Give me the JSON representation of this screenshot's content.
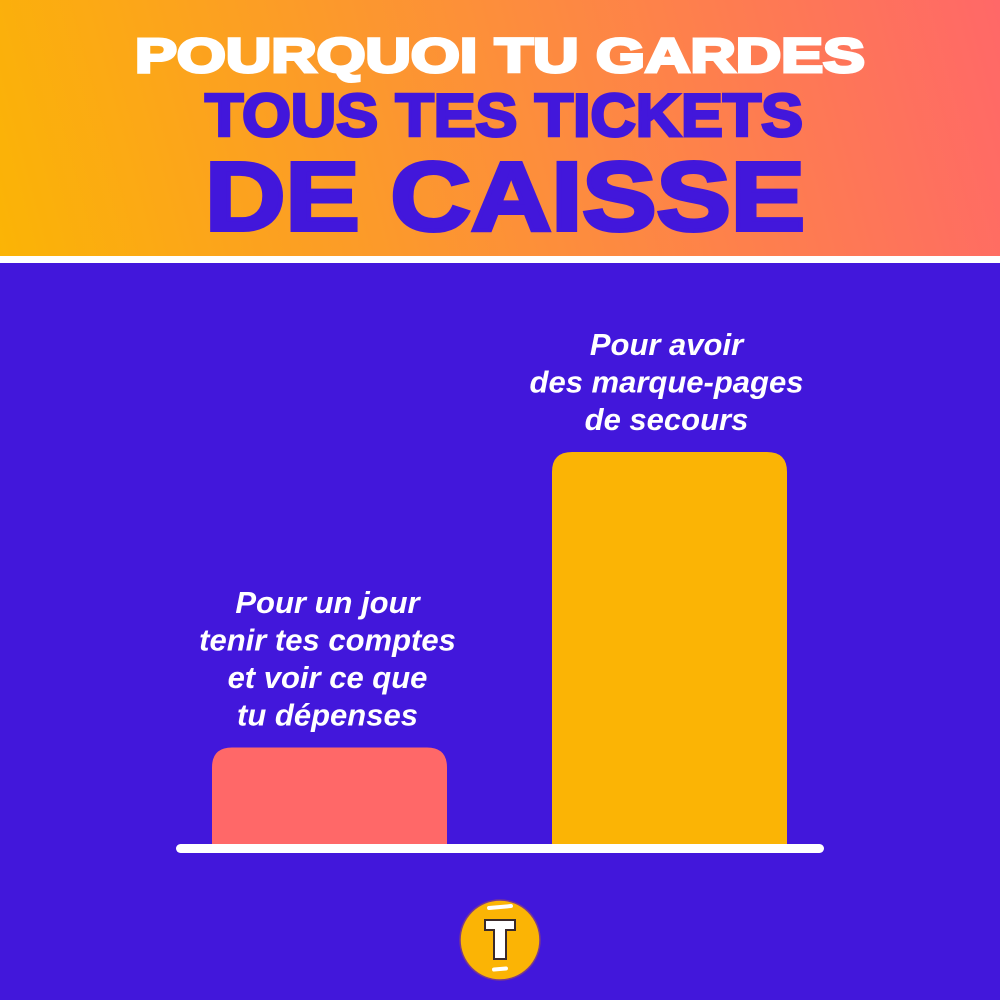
{
  "title": {
    "line1": "POURQUOI TU GARDES",
    "line2": "TOUS TES TICKETS",
    "line3": "DE CAISSE"
  },
  "colors": {
    "background": "#4217db",
    "header_gradient": [
      "#fbb405",
      "#ff6868"
    ],
    "title_white": "#ffffff",
    "title_purple": "#4217db",
    "baseline": "#ffffff",
    "logo": "#fbb405"
  },
  "chart_data": {
    "type": "bar",
    "title": "POURQUOI TU GARDES TOUS TES TICKETS DE CAISSE",
    "categories": [
      [
        "Pour un jour",
        "tenir tes comptes",
        "et voir ce que",
        "tu dépenses"
      ],
      [
        "Pour avoir",
        "des marque-pages",
        "de secours"
      ]
    ],
    "values": [
      25,
      100
    ],
    "bar_colors": [
      "#ff6868",
      "#fbb405"
    ],
    "ylim": [
      0,
      100
    ],
    "xlabel": "",
    "ylabel": "",
    "grid": false,
    "axes_ticks": false,
    "labels_position": "above bars"
  },
  "logo": {
    "icon": "letter-t-logo-icon",
    "letter": "T"
  }
}
